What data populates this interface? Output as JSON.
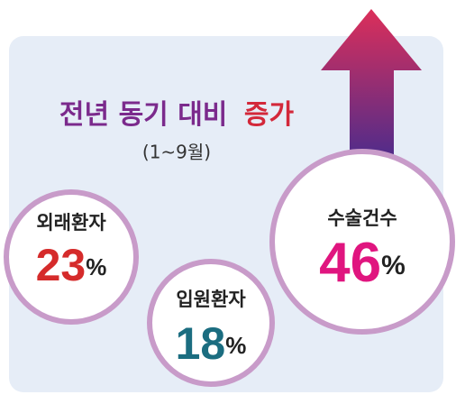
{
  "title": {
    "main": "전년 동기 대비",
    "highlight": "증가"
  },
  "period": "(1~9월)",
  "items": [
    {
      "label": "외래환자",
      "value": 23,
      "unit": "%"
    },
    {
      "label": "입원환자",
      "value": 18,
      "unit": "%"
    },
    {
      "label": "수술건수",
      "value": 46,
      "unit": "%"
    }
  ]
}
